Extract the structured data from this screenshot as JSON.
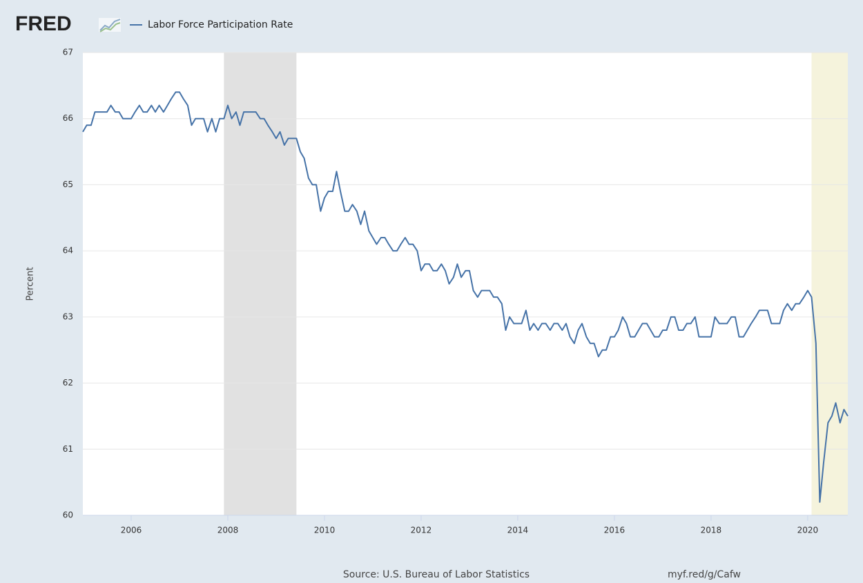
{
  "chart_data": {
    "type": "line",
    "logo": "FRED",
    "y_label": "Percent",
    "source": "Source: U.S. Bureau of Labor Statistics",
    "link": "myf.red/g/Cafw",
    "xlim": [
      2005,
      2020.83
    ],
    "xticks": [
      2006,
      2008,
      2010,
      2012,
      2014,
      2016,
      2018,
      2020
    ],
    "ylim": [
      60,
      67
    ],
    "yticks": [
      60,
      61,
      62,
      63,
      64,
      65,
      66,
      67
    ],
    "grid": true,
    "recessions": [
      {
        "start": 2007.92,
        "end": 2009.42,
        "color": "#e1e1e1"
      },
      {
        "start": 2020.08,
        "end": 2020.83,
        "color": "#f5f3dc"
      }
    ],
    "x": [
      2005,
      2005.08,
      2005.17,
      2005.25,
      2005.33,
      2005.42,
      2005.5,
      2005.58,
      2005.67,
      2005.75,
      2005.83,
      2005.92,
      2006,
      2006.08,
      2006.17,
      2006.25,
      2006.33,
      2006.42,
      2006.5,
      2006.58,
      2006.67,
      2006.75,
      2006.83,
      2006.92,
      2007,
      2007.08,
      2007.17,
      2007.25,
      2007.33,
      2007.42,
      2007.5,
      2007.58,
      2007.67,
      2007.75,
      2007.83,
      2007.92,
      2008,
      2008.08,
      2008.17,
      2008.25,
      2008.33,
      2008.42,
      2008.5,
      2008.58,
      2008.67,
      2008.75,
      2008.83,
      2008.92,
      2009,
      2009.08,
      2009.17,
      2009.25,
      2009.33,
      2009.42,
      2009.5,
      2009.58,
      2009.67,
      2009.75,
      2009.83,
      2009.92,
      2010,
      2010.08,
      2010.17,
      2010.25,
      2010.33,
      2010.42,
      2010.5,
      2010.58,
      2010.67,
      2010.75,
      2010.83,
      2010.92,
      2011,
      2011.08,
      2011.17,
      2011.25,
      2011.33,
      2011.42,
      2011.5,
      2011.58,
      2011.67,
      2011.75,
      2011.83,
      2011.92,
      2012,
      2012.08,
      2012.17,
      2012.25,
      2012.33,
      2012.42,
      2012.5,
      2012.58,
      2012.67,
      2012.75,
      2012.83,
      2012.92,
      2013,
      2013.08,
      2013.17,
      2013.25,
      2013.33,
      2013.42,
      2013.5,
      2013.58,
      2013.67,
      2013.75,
      2013.83,
      2013.92,
      2014,
      2014.08,
      2014.17,
      2014.25,
      2014.33,
      2014.42,
      2014.5,
      2014.58,
      2014.67,
      2014.75,
      2014.83,
      2014.92,
      2015,
      2015.08,
      2015.17,
      2015.25,
      2015.33,
      2015.42,
      2015.5,
      2015.58,
      2015.67,
      2015.75,
      2015.83,
      2015.92,
      2016,
      2016.08,
      2016.17,
      2016.25,
      2016.33,
      2016.42,
      2016.5,
      2016.58,
      2016.67,
      2016.75,
      2016.83,
      2016.92,
      2017,
      2017.08,
      2017.17,
      2017.25,
      2017.33,
      2017.42,
      2017.5,
      2017.58,
      2017.67,
      2017.75,
      2017.83,
      2017.92,
      2018,
      2018.08,
      2018.17,
      2018.25,
      2018.33,
      2018.42,
      2018.5,
      2018.58,
      2018.67,
      2018.75,
      2018.83,
      2018.92,
      2019,
      2019.08,
      2019.17,
      2019.25,
      2019.33,
      2019.42,
      2019.5,
      2019.58,
      2019.67,
      2019.75,
      2019.83,
      2019.92,
      2020,
      2020.08,
      2020.17,
      2020.25,
      2020.33,
      2020.42,
      2020.5,
      2020.58,
      2020.67,
      2020.75,
      2020.83
    ],
    "series": [
      {
        "name": "Labor Force Participation Rate",
        "color": "#4572a7",
        "values": [
          65.8,
          65.9,
          65.9,
          66.1,
          66.1,
          66.1,
          66.1,
          66.2,
          66.1,
          66.1,
          66.0,
          66.0,
          66.0,
          66.1,
          66.2,
          66.1,
          66.1,
          66.2,
          66.1,
          66.2,
          66.1,
          66.2,
          66.3,
          66.4,
          66.4,
          66.3,
          66.2,
          65.9,
          66.0,
          66.0,
          66.0,
          65.8,
          66.0,
          65.8,
          66.0,
          66.0,
          66.2,
          66.0,
          66.1,
          65.9,
          66.1,
          66.1,
          66.1,
          66.1,
          66.0,
          66.0,
          65.9,
          65.8,
          65.7,
          65.8,
          65.6,
          65.7,
          65.7,
          65.7,
          65.5,
          65.4,
          65.1,
          65.0,
          65.0,
          64.6,
          64.8,
          64.9,
          64.9,
          65.2,
          64.9,
          64.6,
          64.6,
          64.7,
          64.6,
          64.4,
          64.6,
          64.3,
          64.2,
          64.1,
          64.2,
          64.2,
          64.1,
          64.0,
          64.0,
          64.1,
          64.2,
          64.1,
          64.1,
          64.0,
          63.7,
          63.8,
          63.8,
          63.7,
          63.7,
          63.8,
          63.7,
          63.5,
          63.6,
          63.8,
          63.6,
          63.7,
          63.7,
          63.4,
          63.3,
          63.4,
          63.4,
          63.4,
          63.3,
          63.3,
          63.2,
          62.8,
          63.0,
          62.9,
          62.9,
          62.9,
          63.1,
          62.8,
          62.9,
          62.8,
          62.9,
          62.9,
          62.8,
          62.9,
          62.9,
          62.8,
          62.9,
          62.7,
          62.6,
          62.8,
          62.9,
          62.7,
          62.6,
          62.6,
          62.4,
          62.5,
          62.5,
          62.7,
          62.7,
          62.8,
          63.0,
          62.9,
          62.7,
          62.7,
          62.8,
          62.9,
          62.9,
          62.8,
          62.7,
          62.7,
          62.8,
          62.8,
          63.0,
          63.0,
          62.8,
          62.8,
          62.9,
          62.9,
          63.0,
          62.7,
          62.7,
          62.7,
          62.7,
          63.0,
          62.9,
          62.9,
          62.9,
          63.0,
          63.0,
          62.7,
          62.7,
          62.8,
          62.9,
          63.0,
          63.1,
          63.1,
          63.1,
          62.9,
          62.9,
          62.9,
          63.1,
          63.2,
          63.1,
          63.2,
          63.2,
          63.3,
          63.4,
          63.3,
          62.6,
          60.2,
          60.8,
          61.4,
          61.5,
          61.7,
          61.4,
          61.6,
          61.5
        ]
      }
    ]
  }
}
